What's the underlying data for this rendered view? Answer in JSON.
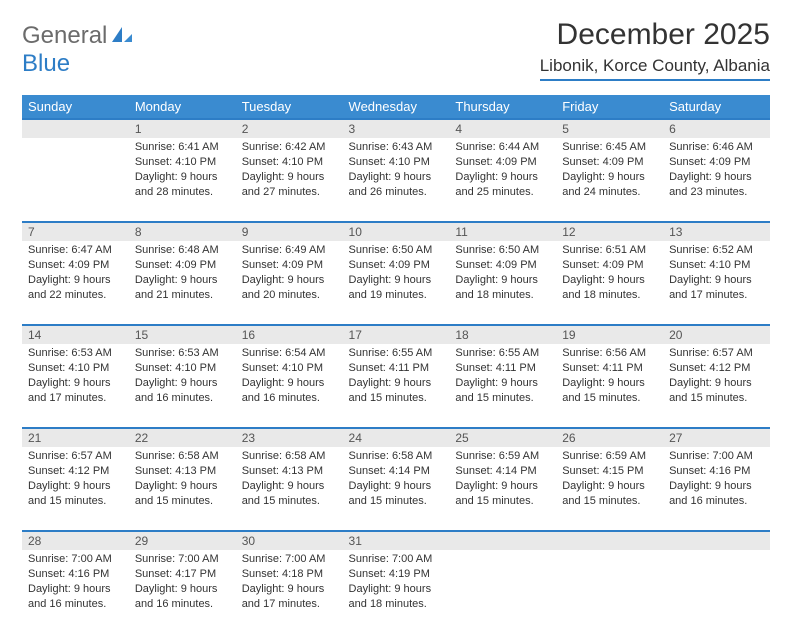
{
  "logo": {
    "text1": "General",
    "text2": "Blue"
  },
  "title": "December 2025",
  "location": "Libonik, Korce County, Albania",
  "colors": {
    "header_bg": "#3a8bd0",
    "accent": "#2d7dc6",
    "gray_row": "#e9e9e9",
    "text": "#333333",
    "bg": "#ffffff"
  },
  "day_headers": [
    "Sunday",
    "Monday",
    "Tuesday",
    "Wednesday",
    "Thursday",
    "Friday",
    "Saturday"
  ],
  "weeks": [
    {
      "nums": [
        "",
        "1",
        "2",
        "3",
        "4",
        "5",
        "6"
      ],
      "cells": [
        null,
        {
          "sunrise": "6:41 AM",
          "sunset": "4:10 PM",
          "daylight": "9 hours and 28 minutes."
        },
        {
          "sunrise": "6:42 AM",
          "sunset": "4:10 PM",
          "daylight": "9 hours and 27 minutes."
        },
        {
          "sunrise": "6:43 AM",
          "sunset": "4:10 PM",
          "daylight": "9 hours and 26 minutes."
        },
        {
          "sunrise": "6:44 AM",
          "sunset": "4:09 PM",
          "daylight": "9 hours and 25 minutes."
        },
        {
          "sunrise": "6:45 AM",
          "sunset": "4:09 PM",
          "daylight": "9 hours and 24 minutes."
        },
        {
          "sunrise": "6:46 AM",
          "sunset": "4:09 PM",
          "daylight": "9 hours and 23 minutes."
        }
      ]
    },
    {
      "nums": [
        "7",
        "8",
        "9",
        "10",
        "11",
        "12",
        "13"
      ],
      "cells": [
        {
          "sunrise": "6:47 AM",
          "sunset": "4:09 PM",
          "daylight": "9 hours and 22 minutes."
        },
        {
          "sunrise": "6:48 AM",
          "sunset": "4:09 PM",
          "daylight": "9 hours and 21 minutes."
        },
        {
          "sunrise": "6:49 AM",
          "sunset": "4:09 PM",
          "daylight": "9 hours and 20 minutes."
        },
        {
          "sunrise": "6:50 AM",
          "sunset": "4:09 PM",
          "daylight": "9 hours and 19 minutes."
        },
        {
          "sunrise": "6:50 AM",
          "sunset": "4:09 PM",
          "daylight": "9 hours and 18 minutes."
        },
        {
          "sunrise": "6:51 AM",
          "sunset": "4:09 PM",
          "daylight": "9 hours and 18 minutes."
        },
        {
          "sunrise": "6:52 AM",
          "sunset": "4:10 PM",
          "daylight": "9 hours and 17 minutes."
        }
      ]
    },
    {
      "nums": [
        "14",
        "15",
        "16",
        "17",
        "18",
        "19",
        "20"
      ],
      "cells": [
        {
          "sunrise": "6:53 AM",
          "sunset": "4:10 PM",
          "daylight": "9 hours and 17 minutes."
        },
        {
          "sunrise": "6:53 AM",
          "sunset": "4:10 PM",
          "daylight": "9 hours and 16 minutes."
        },
        {
          "sunrise": "6:54 AM",
          "sunset": "4:10 PM",
          "daylight": "9 hours and 16 minutes."
        },
        {
          "sunrise": "6:55 AM",
          "sunset": "4:11 PM",
          "daylight": "9 hours and 15 minutes."
        },
        {
          "sunrise": "6:55 AM",
          "sunset": "4:11 PM",
          "daylight": "9 hours and 15 minutes."
        },
        {
          "sunrise": "6:56 AM",
          "sunset": "4:11 PM",
          "daylight": "9 hours and 15 minutes."
        },
        {
          "sunrise": "6:57 AM",
          "sunset": "4:12 PM",
          "daylight": "9 hours and 15 minutes."
        }
      ]
    },
    {
      "nums": [
        "21",
        "22",
        "23",
        "24",
        "25",
        "26",
        "27"
      ],
      "cells": [
        {
          "sunrise": "6:57 AM",
          "sunset": "4:12 PM",
          "daylight": "9 hours and 15 minutes."
        },
        {
          "sunrise": "6:58 AM",
          "sunset": "4:13 PM",
          "daylight": "9 hours and 15 minutes."
        },
        {
          "sunrise": "6:58 AM",
          "sunset": "4:13 PM",
          "daylight": "9 hours and 15 minutes."
        },
        {
          "sunrise": "6:58 AM",
          "sunset": "4:14 PM",
          "daylight": "9 hours and 15 minutes."
        },
        {
          "sunrise": "6:59 AM",
          "sunset": "4:14 PM",
          "daylight": "9 hours and 15 minutes."
        },
        {
          "sunrise": "6:59 AM",
          "sunset": "4:15 PM",
          "daylight": "9 hours and 15 minutes."
        },
        {
          "sunrise": "7:00 AM",
          "sunset": "4:16 PM",
          "daylight": "9 hours and 16 minutes."
        }
      ]
    },
    {
      "nums": [
        "28",
        "29",
        "30",
        "31",
        "",
        "",
        ""
      ],
      "cells": [
        {
          "sunrise": "7:00 AM",
          "sunset": "4:16 PM",
          "daylight": "9 hours and 16 minutes."
        },
        {
          "sunrise": "7:00 AM",
          "sunset": "4:17 PM",
          "daylight": "9 hours and 16 minutes."
        },
        {
          "sunrise": "7:00 AM",
          "sunset": "4:18 PM",
          "daylight": "9 hours and 17 minutes."
        },
        {
          "sunrise": "7:00 AM",
          "sunset": "4:19 PM",
          "daylight": "9 hours and 18 minutes."
        },
        null,
        null,
        null
      ]
    }
  ],
  "labels": {
    "sunrise": "Sunrise:",
    "sunset": "Sunset:",
    "daylight": "Daylight:"
  },
  "typography": {
    "title_fontsize": 30,
    "location_fontsize": 17,
    "header_fontsize": 13,
    "daynum_fontsize": 12,
    "cell_fontsize": 11
  }
}
